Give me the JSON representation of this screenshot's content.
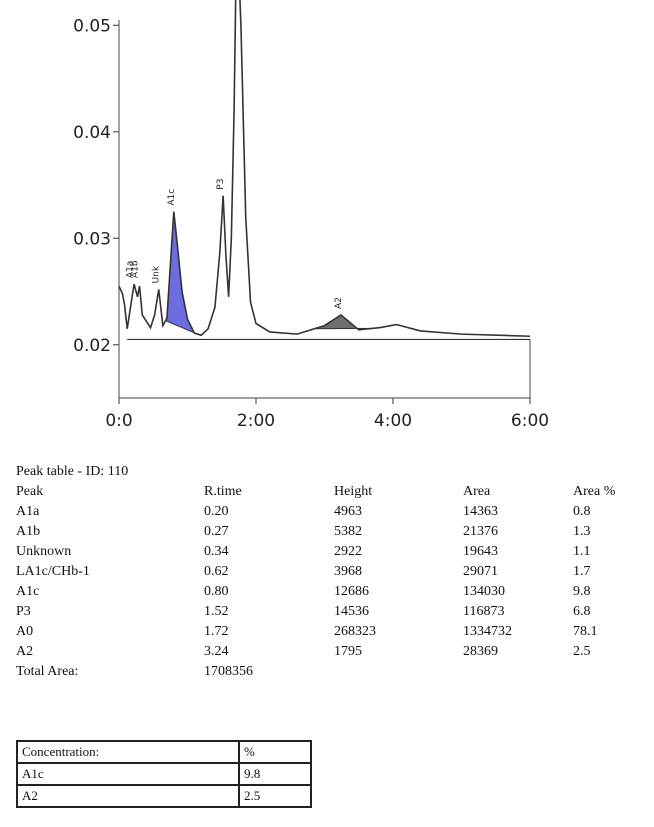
{
  "chart_data": {
    "type": "line",
    "x_ticks": [
      "0:0",
      "2:00",
      "4:00",
      "6:00"
    ],
    "x_range_min": [
      0,
      6
    ],
    "y_ticks": [
      "0.02",
      "0.03",
      "0.04",
      "0.05"
    ],
    "ylim": [
      0.015,
      0.0505
    ],
    "baseline": 0.0205,
    "series": [
      {
        "points": [
          [
            0,
            0.0255
          ],
          [
            0.05,
            0.0248
          ],
          [
            0.08,
            0.0238
          ],
          [
            0.12,
            0.0215
          ],
          [
            0.17,
            0.0236
          ],
          [
            0.22,
            0.0257
          ],
          [
            0.27,
            0.0245
          ],
          [
            0.3,
            0.0255
          ],
          [
            0.34,
            0.0228
          ],
          [
            0.4,
            0.0222
          ],
          [
            0.46,
            0.0216
          ],
          [
            0.52,
            0.0228
          ],
          [
            0.58,
            0.0252
          ],
          [
            0.64,
            0.0218
          ],
          [
            0.7,
            0.0225
          ],
          [
            0.75,
            0.0275
          ],
          [
            0.8,
            0.0325
          ],
          [
            0.85,
            0.0295
          ],
          [
            0.92,
            0.025
          ],
          [
            1.0,
            0.0224
          ],
          [
            1.1,
            0.0211
          ],
          [
            1.2,
            0.0209
          ],
          [
            1.3,
            0.0215
          ],
          [
            1.4,
            0.0235
          ],
          [
            1.47,
            0.0285
          ],
          [
            1.52,
            0.034
          ],
          [
            1.56,
            0.0285
          ],
          [
            1.6,
            0.0245
          ],
          [
            1.64,
            0.03
          ],
          [
            1.68,
            0.042
          ],
          [
            1.72,
            0.06
          ],
          [
            1.78,
            0.05
          ],
          [
            1.85,
            0.032
          ],
          [
            1.92,
            0.024
          ],
          [
            2.0,
            0.022
          ],
          [
            2.2,
            0.0212
          ],
          [
            2.6,
            0.021
          ],
          [
            3.0,
            0.0218
          ],
          [
            3.24,
            0.0228
          ],
          [
            3.5,
            0.0214
          ],
          [
            3.8,
            0.0216
          ],
          [
            4.05,
            0.0219
          ],
          [
            4.4,
            0.0213
          ],
          [
            5.0,
            0.021
          ],
          [
            6.0,
            0.0208
          ]
        ]
      }
    ],
    "peak_labels": [
      {
        "label": "A1a",
        "x": 0.2,
        "y": 0.0257
      },
      {
        "label": "A1b",
        "x": 0.27,
        "y": 0.0257
      },
      {
        "label": "Unk",
        "x": 0.58,
        "y": 0.0252
      },
      {
        "label": "A1c",
        "x": 0.8,
        "y": 0.0325
      },
      {
        "label": "P3",
        "x": 1.52,
        "y": 0.034
      },
      {
        "label": "A2",
        "x": 3.24,
        "y": 0.0228
      }
    ],
    "shaded_peaks": [
      {
        "label": "A1c",
        "x_start": 0.68,
        "x_end": 1.12,
        "color": "#6d6de0"
      },
      {
        "label": "A2",
        "x_start": 2.85,
        "x_end": 3.7,
        "color": "#707070"
      }
    ]
  },
  "peak_table": {
    "title": "Peak table - ID: 110",
    "headers": [
      "Peak",
      "R.time",
      "Height",
      "Area",
      "Area %"
    ],
    "rows": [
      [
        "A1a",
        "0.20",
        "4963",
        "14363",
        "0.8"
      ],
      [
        "A1b",
        "0.27",
        "5382",
        "21376",
        "1.3"
      ],
      [
        "Unknown",
        "0.34",
        "2922",
        "19643",
        "1.1"
      ],
      [
        "LA1c/CHb-1",
        "0.62",
        "3968",
        "29071",
        "1.7"
      ],
      [
        "A1c",
        "0.80",
        "12686",
        "134030",
        "9.8"
      ],
      [
        "P3",
        "1.52",
        "14536",
        "116873",
        "6.8"
      ],
      [
        "A0",
        "1.72",
        "268323",
        "1334732",
        "78.1"
      ],
      [
        "A2",
        "3.24",
        "1795",
        "28369",
        "2.5"
      ]
    ],
    "total_label": "Total Area:",
    "total_value": "1708356"
  },
  "concentration_table": {
    "headers": [
      "Concentration:",
      "%"
    ],
    "rows": [
      [
        "A1c",
        "9.8"
      ],
      [
        "A2",
        "2.5"
      ]
    ]
  },
  "colors": {
    "line": "#333333",
    "a1c_fill": "#6d6de0",
    "a2_fill": "#707070"
  }
}
